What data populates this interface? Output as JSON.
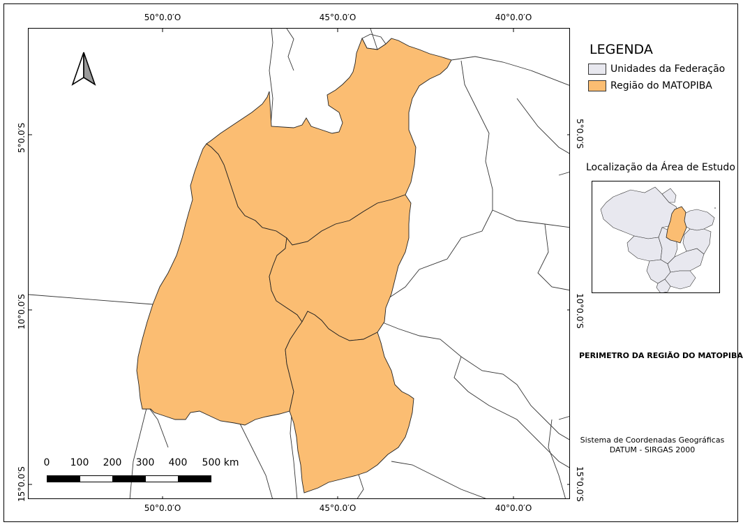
{
  "map": {
    "coordinates": {
      "top": [
        "50°0.0′O",
        "45°0.0′O",
        "40°0.0′O"
      ],
      "bottom": [
        "50°0.0′O",
        "45°0.0′O",
        "40°0.0′O"
      ],
      "left": [
        "5°0.0′S",
        "10°0.0′S",
        "15°0.0′S"
      ],
      "right": [
        "5°0.0′S",
        "10°0.0′S",
        "15°0.0′S"
      ]
    },
    "colors": {
      "matopiba_fill": "#fbbd72",
      "federation_fill": "#e8e8ef",
      "border_line": "#333333"
    },
    "north_arrow_icon": "north-arrow-icon",
    "scalebar": {
      "labels": [
        "0",
        "100",
        "200",
        "300",
        "400",
        "500 km"
      ]
    }
  },
  "legend": {
    "title": "LEGENDA",
    "items": [
      {
        "label": "Unidades da Federação",
        "color": "#e8e8ef"
      },
      {
        "label": "Região do MATOPIBA",
        "color": "#fbbd72"
      }
    ]
  },
  "inset": {
    "title": "Localização da Área de Estudo"
  },
  "subtitle": "PERIMETRO DA REGIÃO DO MATOPIBA",
  "crs": {
    "line1": "Sistema de Coordenadas Geográficas",
    "line2": "DATUM - SIRGAS 2000"
  }
}
